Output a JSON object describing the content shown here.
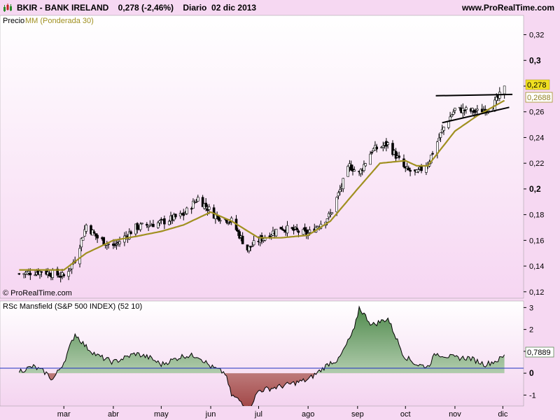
{
  "header": {
    "title": "BKIR - BANK IRELAND    0,278 (-2,46%)    Diario  02 dic 2013",
    "site": "www.ProRealTime.com"
  },
  "colors": {
    "background": "#f6d8f2",
    "panel_bg_top": "#ffffff",
    "panel_bg_bottom": "#f4d6f0",
    "candle": "#000000",
    "ma": "#a09020",
    "rsc_positive": "#5a8a56",
    "rsc_negative": "#a84a4a",
    "zero_line": "#2030c0"
  },
  "price_panel": {
    "label_precio": "Precio",
    "label_ma": "MM (Ponderada 30)",
    "copyright": "© ProRealTime.com",
    "last_price_label": "0,278",
    "ma_value_label": "0,2688"
  },
  "rsc_panel": {
    "label": "RSc Mansfield (S&P 500 INDEX) (52 10)",
    "last_value_label": "0,7889"
  },
  "x_axis": {
    "labels": [
      "mar",
      "abr",
      "may",
      "jun",
      "jul",
      "ago",
      "sep",
      "oct",
      "nov",
      "dic"
    ]
  },
  "chart_data": [
    {
      "type": "candlestick",
      "title": "BKIR - BANK IRELAND",
      "ylim": [
        0.115,
        0.335
      ],
      "yticks": [
        0.12,
        0.14,
        0.16,
        0.18,
        0.2,
        0.22,
        0.24,
        0.26,
        0.28,
        0.3,
        0.32
      ],
      "ytick_labels": [
        "0,12",
        "0,14",
        "0,16",
        "0,18",
        "0,2",
        "0,22",
        "0,24",
        "0,26",
        "0,28",
        "0,3",
        "0,32"
      ],
      "series": [
        {
          "name": "Precio",
          "x": [
            "2013-02-01",
            "2013-02-15",
            "2013-03-01",
            "2013-03-08",
            "2013-03-15",
            "2013-03-22",
            "2013-04-01",
            "2013-04-15",
            "2013-05-01",
            "2013-05-15",
            "2013-05-24",
            "2013-06-03",
            "2013-06-14",
            "2013-06-24",
            "2013-07-01",
            "2013-07-15",
            "2013-08-01",
            "2013-08-15",
            "2013-08-27",
            "2013-09-02",
            "2013-09-10",
            "2013-09-20",
            "2013-10-01",
            "2013-10-08",
            "2013-10-15",
            "2013-10-25",
            "2013-11-01",
            "2013-11-15",
            "2013-11-25",
            "2013-12-02"
          ],
          "values": [
            0.134,
            0.136,
            0.132,
            0.145,
            0.172,
            0.162,
            0.155,
            0.17,
            0.174,
            0.18,
            0.193,
            0.18,
            0.175,
            0.153,
            0.16,
            0.17,
            0.165,
            0.18,
            0.218,
            0.212,
            0.23,
            0.235,
            0.215,
            0.212,
            0.22,
            0.248,
            0.262,
            0.26,
            0.265,
            0.278
          ]
        },
        {
          "name": "MM (Ponderada 30)",
          "x": [
            "2013-02-01",
            "2013-02-15",
            "2013-03-01",
            "2013-03-15",
            "2013-04-01",
            "2013-04-15",
            "2013-05-01",
            "2013-05-15",
            "2013-06-01",
            "2013-06-14",
            "2013-07-01",
            "2013-07-15",
            "2013-08-01",
            "2013-08-15",
            "2013-09-01",
            "2013-09-15",
            "2013-10-01",
            "2013-10-08",
            "2013-10-15",
            "2013-11-01",
            "2013-11-15",
            "2013-12-02"
          ],
          "values": [
            0.137,
            0.137,
            0.137,
            0.15,
            0.16,
            0.163,
            0.167,
            0.172,
            0.182,
            0.175,
            0.162,
            0.162,
            0.164,
            0.175,
            0.2,
            0.22,
            0.222,
            0.218,
            0.218,
            0.245,
            0.257,
            0.2688
          ]
        }
      ],
      "annotations": [
        {
          "type": "trendline",
          "name": "upper",
          "x": [
            "2013-10-20",
            "2013-12-07"
          ],
          "y": [
            0.2725,
            0.2735
          ]
        },
        {
          "type": "trendline",
          "name": "lower",
          "x": [
            "2013-10-24",
            "2013-12-05"
          ],
          "y": [
            0.2515,
            0.2635
          ]
        }
      ]
    },
    {
      "type": "area",
      "title": "RSc Mansfield (S&P 500 INDEX) (52 10)",
      "ylim": [
        -1.5,
        3.3
      ],
      "yticks": [
        -1,
        0,
        1,
        2,
        3
      ],
      "ytick_labels": [
        "-1",
        "0",
        "1",
        "2",
        "3"
      ],
      "series": [
        {
          "name": "RSc Mansfield",
          "x": [
            "2013-02-01",
            "2013-02-10",
            "2013-02-18",
            "2013-02-22",
            "2013-03-01",
            "2013-03-08",
            "2013-03-15",
            "2013-03-22",
            "2013-04-01",
            "2013-04-15",
            "2013-04-24",
            "2013-05-01",
            "2013-05-15",
            "2013-05-24",
            "2013-06-01",
            "2013-06-10",
            "2013-06-14",
            "2013-06-20",
            "2013-06-25",
            "2013-07-01",
            "2013-07-15",
            "2013-08-01",
            "2013-08-10",
            "2013-08-15",
            "2013-08-20",
            "2013-08-30",
            "2013-09-02",
            "2013-09-10",
            "2013-09-20",
            "2013-09-30",
            "2013-10-08",
            "2013-10-15",
            "2013-10-20",
            "2013-11-01",
            "2013-11-10",
            "2013-11-20",
            "2013-11-28",
            "2013-12-02"
          ],
          "values": [
            0.1,
            0.3,
            0.0,
            -0.3,
            0.5,
            1.8,
            1.2,
            0.8,
            0.5,
            0.9,
            0.7,
            0.4,
            0.8,
            0.8,
            0.3,
            0.0,
            -1.0,
            -1.3,
            -1.6,
            -0.8,
            -0.6,
            -0.3,
            0.2,
            0.5,
            0.6,
            2.0,
            3.0,
            2.2,
            2.5,
            0.8,
            0.4,
            0.3,
            0.9,
            0.7,
            0.7,
            0.4,
            0.6,
            0.7889
          ]
        }
      ]
    }
  ]
}
